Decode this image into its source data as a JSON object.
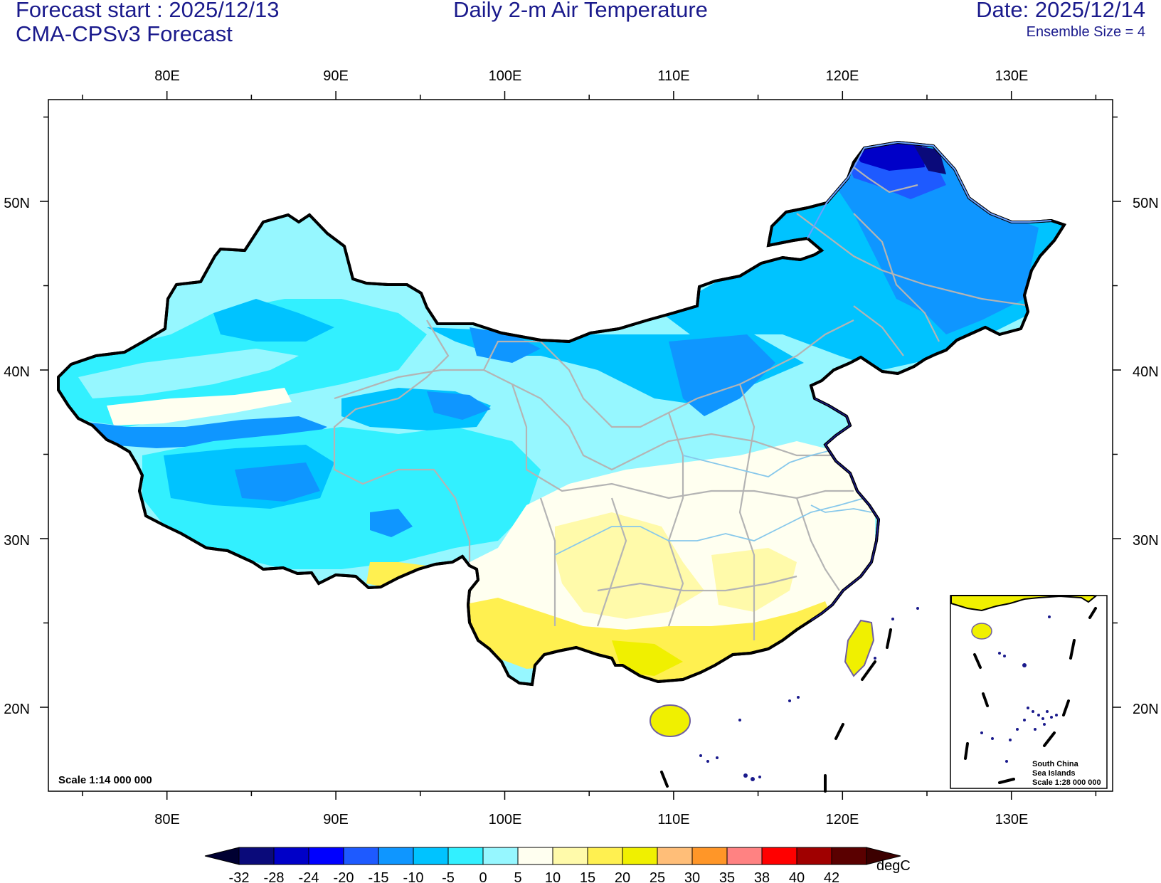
{
  "header": {
    "left_line1": "Forecast start : 2025/12/13",
    "left_line2": "CMA-CPSv3 Forecast",
    "center": "Daily 2-m Air Temperature",
    "right_line1": "Date: 2025/12/14",
    "right_line2": "Ensemble Size = 4"
  },
  "axes": {
    "lon_labels": [
      "80E",
      "90E",
      "100E",
      "110E",
      "120E",
      "130E"
    ],
    "lat_labels": [
      "50N",
      "40N",
      "30N",
      "20N"
    ]
  },
  "map": {
    "scale_label": "Scale 1:14 000 000",
    "inset_title_line1": "South China",
    "inset_title_line2": "Sea Islands",
    "inset_scale": "Scale 1:28 000 000"
  },
  "colorbar": {
    "unit": "degC",
    "levels": [
      "-32",
      "-28",
      "-24",
      "-20",
      "-15",
      "-10",
      "-5",
      "0",
      "5",
      "10",
      "15",
      "20",
      "25",
      "30",
      "35",
      "38",
      "40",
      "42"
    ],
    "colors": [
      "#0a0a7a",
      "#0000c8",
      "#0000ff",
      "#1e5aff",
      "#0f96ff",
      "#00c3ff",
      "#32f0ff",
      "#96f7ff",
      "#fffff0",
      "#fffaaa",
      "#fff050",
      "#f0f000",
      "#ffbe78",
      "#ff9628",
      "#ff8282",
      "#ff0000",
      "#a00000",
      "#5a0000"
    ],
    "low_extend_color": "#000032",
    "high_extend_color": "#3c0000"
  }
}
